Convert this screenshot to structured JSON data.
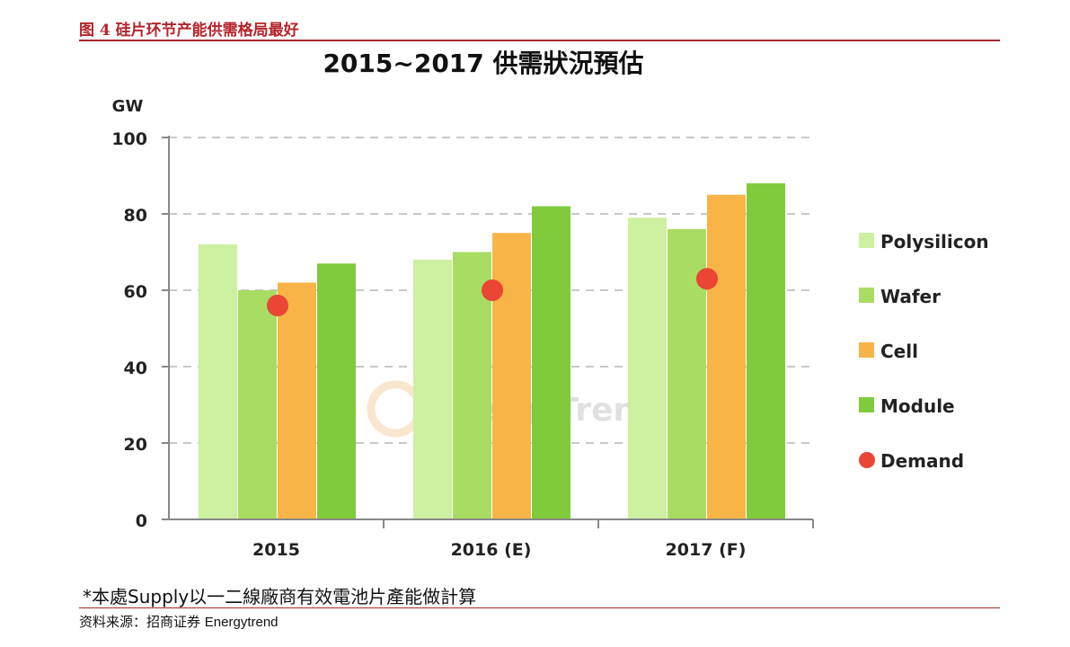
{
  "header": {
    "figure_label": "图 4",
    "figure_title": "硅片环节产能供需格局最好"
  },
  "watermark": "EnergyTrend",
  "footnote": "*本處Supply以一二線廠商有效電池片產能做計算",
  "source": {
    "prefix": "资料来源：招商证券",
    "name": "Energytrend"
  },
  "chart_data": {
    "type": "bar",
    "title": "2015~2017 供需狀況預估",
    "ylabel": "GW",
    "xlabel": "",
    "categories": [
      "2015",
      "2016 (E)",
      "2017 (F)"
    ],
    "ylim": [
      0,
      100
    ],
    "yticks": [
      0,
      20,
      40,
      60,
      80,
      100
    ],
    "grid": true,
    "legend_position": "right",
    "series": [
      {
        "name": "Polysilicon",
        "kind": "bar",
        "color": "#cdf0a0",
        "values": [
          72,
          68,
          79
        ]
      },
      {
        "name": "Wafer",
        "kind": "bar",
        "color": "#a9dc62",
        "values": [
          60,
          70,
          76
        ]
      },
      {
        "name": "Cell",
        "kind": "bar",
        "color": "#f8b447",
        "values": [
          62,
          75,
          85
        ]
      },
      {
        "name": "Module",
        "kind": "bar",
        "color": "#7fcb3c",
        "values": [
          67,
          82,
          88
        ]
      },
      {
        "name": "Demand",
        "kind": "point",
        "color": "#ea4535",
        "values": [
          56,
          60,
          63
        ]
      }
    ]
  }
}
